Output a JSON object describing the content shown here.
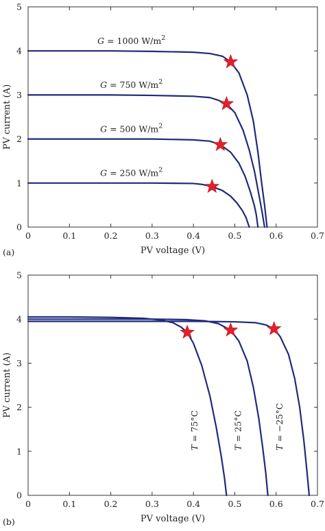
{
  "chart_data": [
    {
      "type": "line",
      "panel_label": "(a)",
      "xlabel": "PV voltage (V)",
      "ylabel": "PV current (A)",
      "xlim": [
        0,
        0.7
      ],
      "ylim": [
        0,
        5
      ],
      "xticks": [
        "0",
        "0.1",
        "0.2",
        "0.3",
        "0.4",
        "0.5",
        "0.6",
        "0.7"
      ],
      "yticks": [
        "0",
        "1",
        "2",
        "3",
        "4",
        "5"
      ],
      "grid": false,
      "line_color": "#1f2a7a",
      "marker_color": "#e3202a",
      "series": [
        {
          "label_var": "G",
          "label_text": " = 1000 W/m",
          "label_sup": "2",
          "isc": 4.0,
          "voc": 0.578,
          "points": [
            [
              0,
              4.0
            ],
            [
              0.1,
              4.0
            ],
            [
              0.2,
              4.0
            ],
            [
              0.3,
              3.99
            ],
            [
              0.4,
              3.97
            ],
            [
              0.44,
              3.94
            ],
            [
              0.47,
              3.88
            ],
            [
              0.49,
              3.75
            ],
            [
              0.51,
              3.5
            ],
            [
              0.53,
              3.0
            ],
            [
              0.545,
              2.4
            ],
            [
              0.556,
              1.7
            ],
            [
              0.565,
              1.0
            ],
            [
              0.572,
              0.5
            ],
            [
              0.578,
              0.0
            ]
          ],
          "mpp": [
            0.49,
            3.75
          ]
        },
        {
          "label_var": "G",
          "label_text": " = 750 W/m",
          "label_sup": "2",
          "isc": 3.0,
          "voc": 0.572,
          "points": [
            [
              0,
              3.0
            ],
            [
              0.1,
              3.0
            ],
            [
              0.2,
              3.0
            ],
            [
              0.3,
              2.99
            ],
            [
              0.4,
              2.97
            ],
            [
              0.44,
              2.94
            ],
            [
              0.46,
              2.88
            ],
            [
              0.48,
              2.8
            ],
            [
              0.5,
              2.6
            ],
            [
              0.52,
              2.2
            ],
            [
              0.535,
              1.75
            ],
            [
              0.548,
              1.25
            ],
            [
              0.558,
              0.75
            ],
            [
              0.566,
              0.35
            ],
            [
              0.572,
              0.0
            ]
          ],
          "mpp": [
            0.48,
            2.8
          ]
        },
        {
          "label_var": "G",
          "label_text": " = 500 W/m",
          "label_sup": "2",
          "isc": 2.0,
          "voc": 0.556,
          "points": [
            [
              0,
              2.0
            ],
            [
              0.1,
              2.0
            ],
            [
              0.2,
              2.0
            ],
            [
              0.3,
              2.0
            ],
            [
              0.4,
              1.98
            ],
            [
              0.44,
              1.95
            ],
            [
              0.465,
              1.87
            ],
            [
              0.49,
              1.7
            ],
            [
              0.51,
              1.45
            ],
            [
              0.525,
              1.15
            ],
            [
              0.537,
              0.82
            ],
            [
              0.547,
              0.5
            ],
            [
              0.552,
              0.28
            ],
            [
              0.556,
              0.0
            ]
          ],
          "mpp": [
            0.465,
            1.87
          ]
        },
        {
          "label_var": "G",
          "label_text": " = 250 W/m",
          "label_sup": "2",
          "isc": 1.0,
          "voc": 0.535,
          "points": [
            [
              0,
              1.0
            ],
            [
              0.1,
              1.0
            ],
            [
              0.2,
              1.0
            ],
            [
              0.3,
              1.0
            ],
            [
              0.4,
              0.99
            ],
            [
              0.42,
              0.97
            ],
            [
              0.445,
              0.92
            ],
            [
              0.47,
              0.83
            ],
            [
              0.49,
              0.7
            ],
            [
              0.505,
              0.55
            ],
            [
              0.518,
              0.38
            ],
            [
              0.527,
              0.22
            ],
            [
              0.535,
              0.0
            ]
          ],
          "mpp": [
            0.445,
            0.92
          ]
        }
      ]
    },
    {
      "type": "line",
      "panel_label": "(b)",
      "xlabel": "PV voltage (V)",
      "ylabel": "PV current (A)",
      "xlim": [
        0,
        0.7
      ],
      "ylim": [
        0,
        5
      ],
      "xticks": [
        "0",
        "0.1",
        "0.2",
        "0.3",
        "0.4",
        "0.5",
        "0.6",
        "0.7"
      ],
      "yticks": [
        "0",
        "1",
        "2",
        "3",
        "4",
        "5"
      ],
      "grid": false,
      "line_color": "#1f2a7a",
      "marker_color": "#e3202a",
      "series": [
        {
          "label_var": "T",
          "label_text": " = 75°C",
          "isc": 4.05,
          "voc": 0.48,
          "points": [
            [
              0,
              4.05
            ],
            [
              0.1,
              4.05
            ],
            [
              0.2,
              4.04
            ],
            [
              0.28,
              4.02
            ],
            [
              0.32,
              3.98
            ],
            [
              0.35,
              3.92
            ],
            [
              0.37,
              3.82
            ],
            [
              0.385,
              3.7
            ],
            [
              0.4,
              3.45
            ],
            [
              0.42,
              2.95
            ],
            [
              0.44,
              2.25
            ],
            [
              0.455,
              1.55
            ],
            [
              0.467,
              0.9
            ],
            [
              0.475,
              0.4
            ],
            [
              0.48,
              0.0
            ]
          ],
          "mpp": [
            0.385,
            3.7
          ]
        },
        {
          "label_var": "T",
          "label_text": " = 25°C",
          "isc": 4.0,
          "voc": 0.58,
          "points": [
            [
              0,
              4.0
            ],
            [
              0.1,
              4.0
            ],
            [
              0.2,
              4.0
            ],
            [
              0.3,
              4.0
            ],
            [
              0.38,
              3.99
            ],
            [
              0.43,
              3.96
            ],
            [
              0.46,
              3.9
            ],
            [
              0.49,
              3.75
            ],
            [
              0.51,
              3.5
            ],
            [
              0.53,
              3.05
            ],
            [
              0.545,
              2.45
            ],
            [
              0.558,
              1.75
            ],
            [
              0.568,
              1.05
            ],
            [
              0.575,
              0.5
            ],
            [
              0.58,
              0.0
            ]
          ],
          "mpp": [
            0.49,
            3.75
          ]
        },
        {
          "label_var": "T",
          "label_text": " = −25°C",
          "isc": 3.95,
          "voc": 0.68,
          "points": [
            [
              0,
              3.95
            ],
            [
              0.1,
              3.95
            ],
            [
              0.2,
              3.95
            ],
            [
              0.3,
              3.95
            ],
            [
              0.4,
              3.95
            ],
            [
              0.5,
              3.94
            ],
            [
              0.55,
              3.92
            ],
            [
              0.575,
              3.87
            ],
            [
              0.595,
              3.78
            ],
            [
              0.61,
              3.6
            ],
            [
              0.63,
              3.2
            ],
            [
              0.645,
              2.65
            ],
            [
              0.657,
              2.0
            ],
            [
              0.667,
              1.25
            ],
            [
              0.674,
              0.6
            ],
            [
              0.68,
              0.0
            ]
          ],
          "mpp": [
            0.595,
            3.78
          ]
        }
      ]
    }
  ]
}
